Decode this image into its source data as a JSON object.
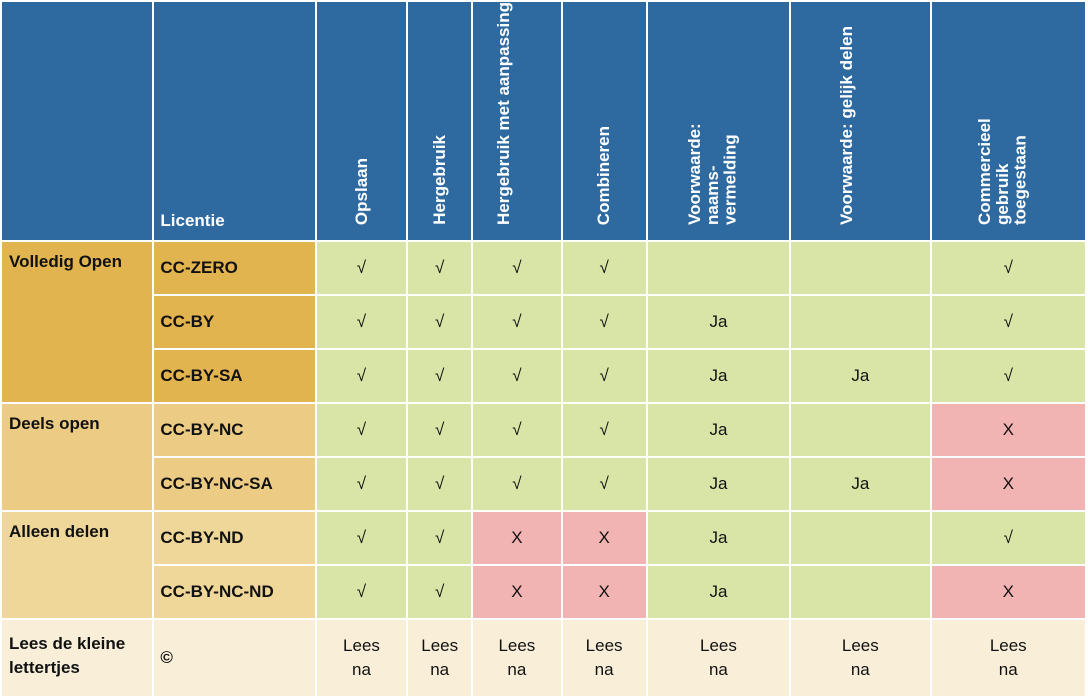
{
  "header": {
    "licentie": "Licentie",
    "columns": [
      "Opslaan",
      "Hergebruik",
      "Hergebruik met aanpassing",
      "Combineren",
      "Voorwaarde: naams-vermelding",
      "Voorwaarde: gelijk delen",
      "Commercieel gebruik toegestaan"
    ]
  },
  "categories": {
    "open": "Volledig Open",
    "partial": "Deels open",
    "share": "Alleen delen",
    "fine": "Lees de kleine lettertjes"
  },
  "rows": [
    {
      "license": "CC-ZERO",
      "cells": [
        "√",
        "√",
        "√",
        "√",
        "",
        "",
        "√"
      ]
    },
    {
      "license": "CC-BY",
      "cells": [
        "√",
        "√",
        "√",
        "√",
        "Ja",
        "",
        "√"
      ]
    },
    {
      "license": "CC-BY-SA",
      "cells": [
        "√",
        "√",
        "√",
        "√",
        "Ja",
        "Ja",
        "√"
      ]
    },
    {
      "license": "CC-BY-NC",
      "cells": [
        "√",
        "√",
        "√",
        "√",
        "Ja",
        "",
        "X"
      ]
    },
    {
      "license": "CC-BY-NC-SA",
      "cells": [
        "√",
        "√",
        "√",
        "√",
        "Ja",
        "Ja",
        "X"
      ]
    },
    {
      "license": "CC-BY-ND",
      "cells": [
        "√",
        "√",
        "X",
        "X",
        "Ja",
        "",
        "√"
      ]
    },
    {
      "license": "CC-BY-NC-ND",
      "cells": [
        "√",
        "√",
        "X",
        "X",
        "Ja",
        "",
        "X"
      ]
    }
  ],
  "footer": {
    "license": "©",
    "cell_line1": "Lees",
    "cell_line2": "na"
  },
  "colors": {
    "header_blue": "#2e6aa0",
    "allowed_green": "#d8e5a7",
    "denied_pink": "#f2b3b3",
    "open_gold": "#e2b44f",
    "partial_tan": "#eccc84",
    "share_tan": "#efd699",
    "footer_cream": "#f9efd9"
  }
}
